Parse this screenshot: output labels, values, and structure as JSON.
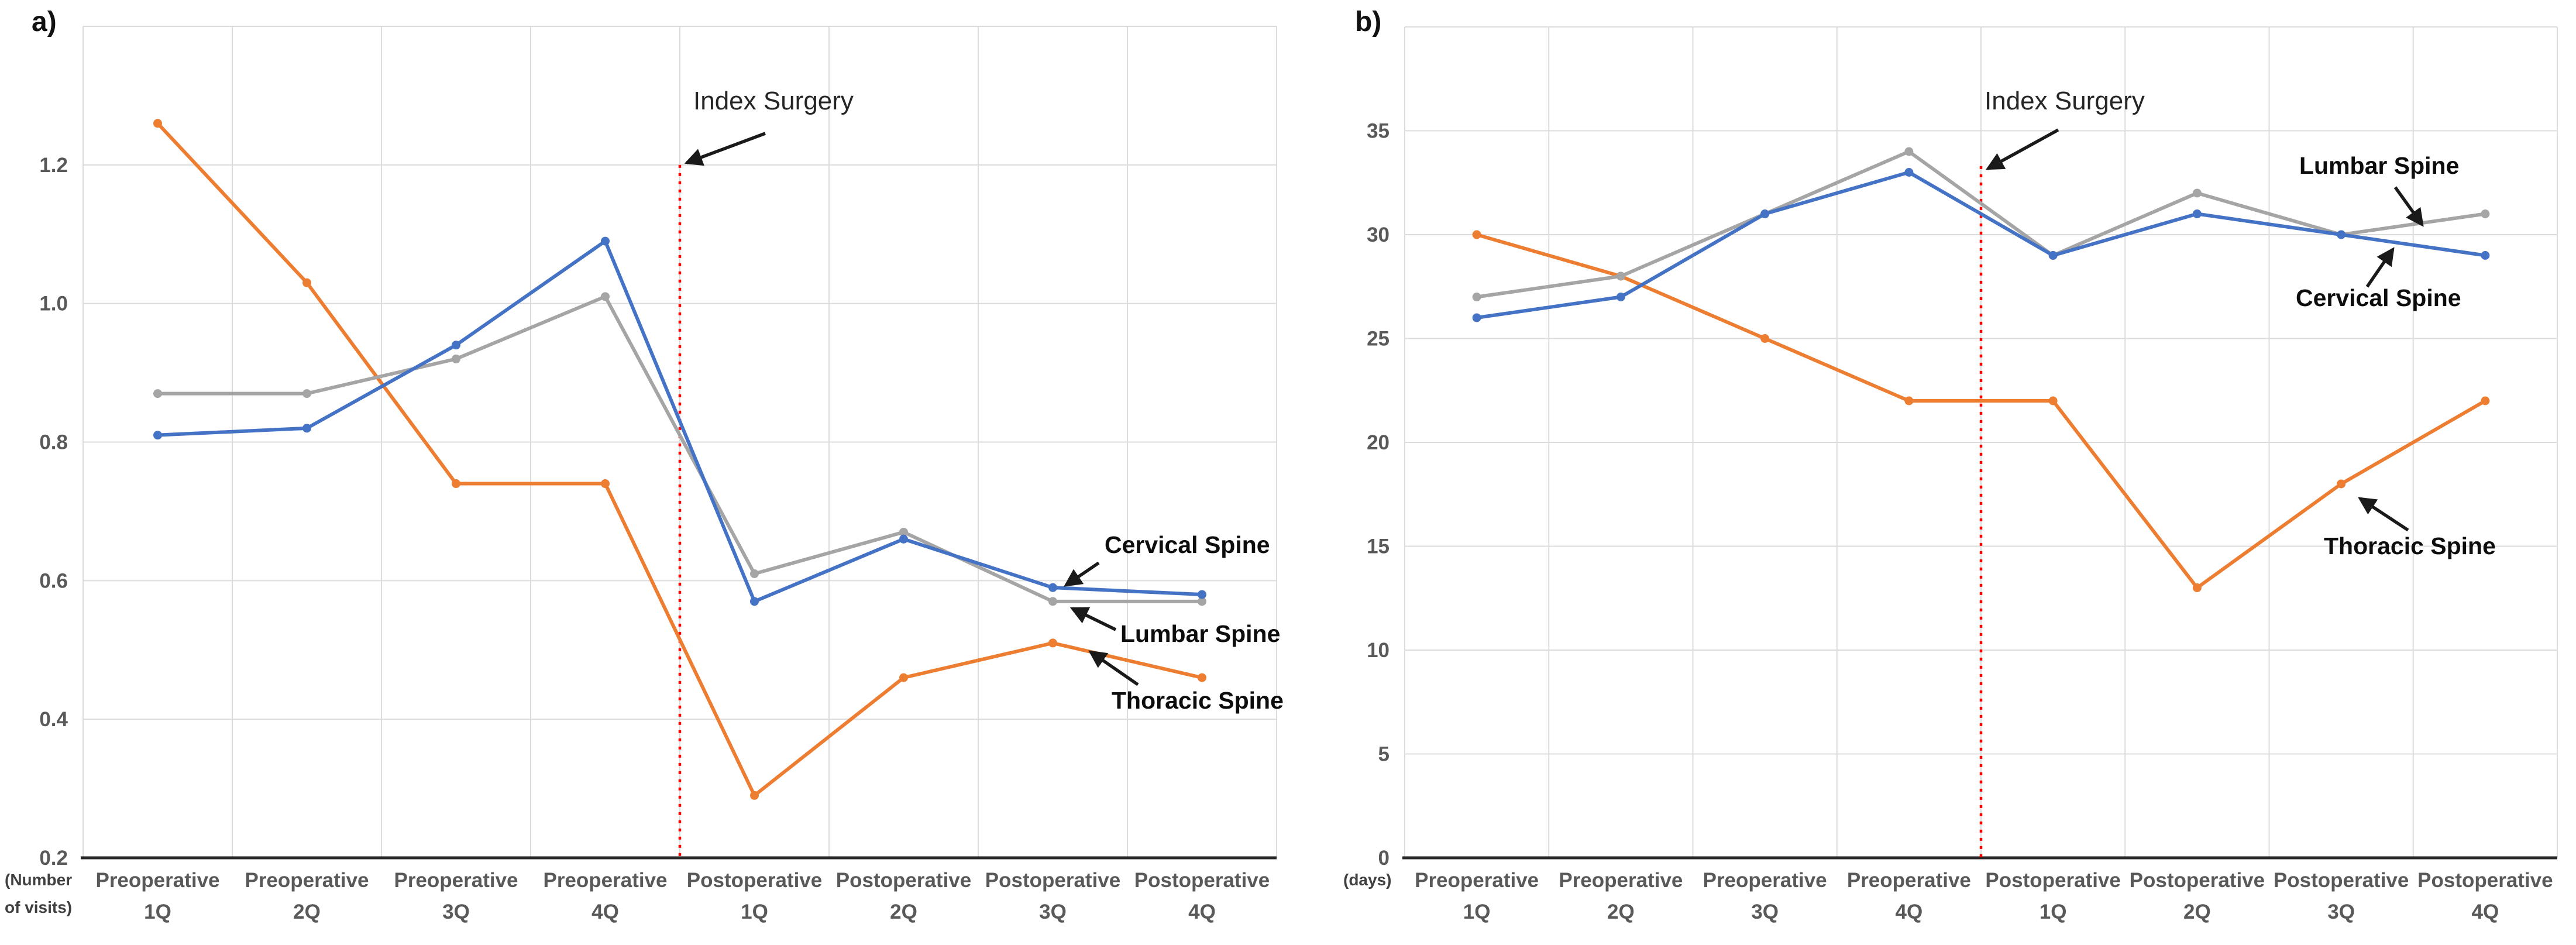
{
  "figure": {
    "panels": [
      {
        "label": "a)",
        "unit_lines": [
          "(Number",
          "of visits)"
        ]
      },
      {
        "label": "b)",
        "unit_lines": [
          "(days)",
          ""
        ]
      }
    ]
  },
  "chart_data": [
    {
      "id": "a",
      "type": "line",
      "title": "a)",
      "ylabel": "(Number of visits)",
      "xlabel": "",
      "categories": [
        "Preoperative 1Q",
        "Preoperative 2Q",
        "Preoperative 3Q",
        "Preoperative 4Q",
        "Postoperative 1Q",
        "Postoperative 2Q",
        "Postoperative 3Q",
        "Postoperative 4Q"
      ],
      "ylim": [
        0.2,
        1.4
      ],
      "y_ticks": [
        {
          "label": "0.2",
          "value": 0.2
        },
        {
          "label": "0.4",
          "value": 0.4
        },
        {
          "label": "0.6",
          "value": 0.6
        },
        {
          "label": "0.8",
          "value": 0.8
        },
        {
          "label": "1.0",
          "value": 1.0
        },
        {
          "label": "1.2",
          "value": 1.2
        }
      ],
      "grid": true,
      "legend": "inline labels with arrows",
      "series": [
        {
          "name": "Cervical Spine",
          "color": "#4472C4",
          "values": [
            0.81,
            0.82,
            0.94,
            1.09,
            0.57,
            0.66,
            0.59,
            0.58
          ]
        },
        {
          "name": "Lumbar Spine",
          "color": "#A5A5A5",
          "values": [
            0.87,
            0.87,
            0.92,
            1.01,
            0.61,
            0.67,
            0.57,
            0.57
          ]
        },
        {
          "name": "Thoracic Spine",
          "color": "#ED7D31",
          "values": [
            1.26,
            1.03,
            0.74,
            0.74,
            0.29,
            0.46,
            0.51,
            0.46
          ]
        }
      ],
      "annotation": {
        "label": "Index Surgery",
        "line_color": "#FF0000",
        "line_style": "dotted vertical",
        "line_position": "between Preoperative 4Q and Postoperative 1Q"
      }
    },
    {
      "id": "b",
      "type": "line",
      "title": "b)",
      "ylabel": "(days)",
      "xlabel": "",
      "categories": [
        "Preoperative 1Q",
        "Preoperative 2Q",
        "Preoperative 3Q",
        "Preoperative 4Q",
        "Postoperative 1Q",
        "Postoperative 2Q",
        "Postoperative 3Q",
        "Postoperative 4Q"
      ],
      "ylim": [
        0,
        40
      ],
      "y_ticks": [
        {
          "label": "0",
          "value": 0
        },
        {
          "label": "5",
          "value": 5
        },
        {
          "label": "10",
          "value": 10
        },
        {
          "label": "15",
          "value": 15
        },
        {
          "label": "20",
          "value": 20
        },
        {
          "label": "25",
          "value": 25
        },
        {
          "label": "30",
          "value": 30
        },
        {
          "label": "35",
          "value": 35
        }
      ],
      "grid": true,
      "legend": "inline labels with arrows",
      "series": [
        {
          "name": "Cervical Spine",
          "color": "#4472C4",
          "values": [
            26,
            27,
            31,
            33,
            29,
            31,
            30,
            29
          ]
        },
        {
          "name": "Lumbar Spine",
          "color": "#A5A5A5",
          "values": [
            27,
            28,
            31,
            34,
            29,
            32,
            30,
            31
          ]
        },
        {
          "name": "Thoracic Spine",
          "color": "#ED7D31",
          "values": [
            30,
            28,
            25,
            22,
            22,
            13,
            18,
            22
          ]
        }
      ],
      "annotation": {
        "label": "Index Surgery",
        "line_color": "#FF0000",
        "line_style": "dotted vertical",
        "line_position": "between Preoperative 4Q and Postoperative 1Q"
      }
    }
  ]
}
